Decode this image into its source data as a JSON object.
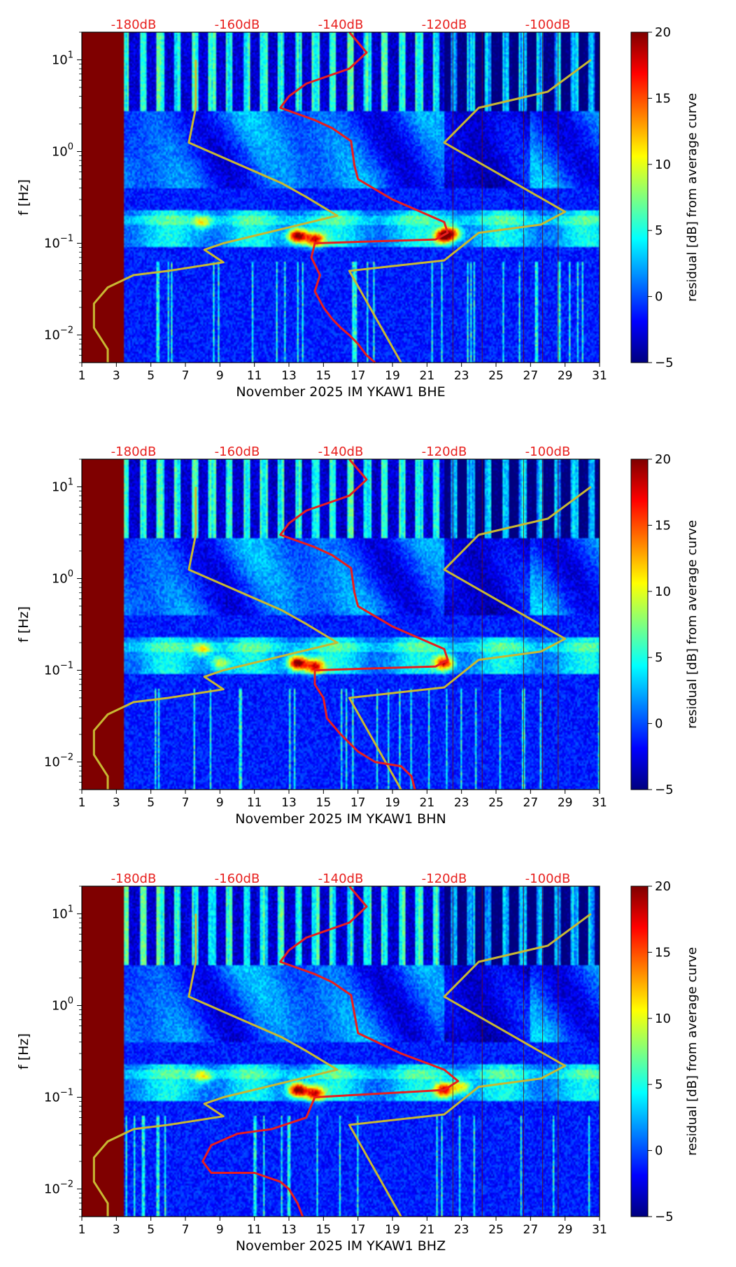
{
  "colors": {
    "db_label": "#e8201e",
    "yellow_curve": "#c8b832",
    "red_curve": "#e81e1e",
    "pre_data_fill": "#800000",
    "jet": [
      "#00007f",
      "#0000ff",
      "#007fff",
      "#00ffff",
      "#7fff7f",
      "#ffff00",
      "#ff7f00",
      "#ff0000",
      "#7f0000"
    ]
  },
  "chart_data": [
    {
      "type": "heatmap",
      "channel": "BHE",
      "xlabel": "November 2025 IM YKAW1  BHE",
      "ylabel": "f [Hz]",
      "x_ticks": [
        "1",
        "3",
        "5",
        "7",
        "9",
        "11",
        "13",
        "15",
        "17",
        "19",
        "21",
        "23",
        "25",
        "27",
        "29",
        "31"
      ],
      "xlim": [
        1,
        31
      ],
      "y_ticks": [
        "10^-2",
        "10^-1",
        "10^0",
        "10^1"
      ],
      "ylim_hz": [
        0.005,
        20
      ],
      "top_db_ticks": [
        "-180dB",
        "-160dB",
        "-140dB",
        "-120dB",
        "-100dB"
      ],
      "top_db_day_positions": [
        4,
        10,
        16,
        22,
        28
      ],
      "data_start_day": 3.4,
      "colorbar": {
        "label": "residual [dB] from average curve",
        "ticks": [
          "20",
          "15",
          "10",
          "5",
          "0",
          "−5"
        ],
        "range": [
          -5,
          20
        ]
      },
      "yellow_curve": [
        [
          2.5,
          0.005
        ],
        [
          2.5,
          0.007
        ],
        [
          1.7,
          0.012
        ],
        [
          1.7,
          0.022
        ],
        [
          2.5,
          0.033
        ],
        [
          4,
          0.045
        ],
        [
          6,
          0.05
        ],
        [
          9.2,
          0.062
        ],
        [
          8.1,
          0.085
        ],
        [
          9.2,
          0.1
        ],
        [
          15.8,
          0.2
        ],
        [
          14,
          0.32
        ],
        [
          12.6,
          0.45
        ],
        [
          7.2,
          1.25
        ],
        [
          7.6,
          3
        ],
        [
          7.6,
          10
        ],
        [
          19.5,
          0.005
        ],
        [
          16.5,
          0.05
        ],
        [
          22,
          0.065
        ],
        [
          24,
          0.13
        ],
        [
          27.6,
          0.16
        ],
        [
          29,
          0.22
        ],
        [
          22,
          1.25
        ],
        [
          24,
          3
        ],
        [
          28,
          4.5
        ],
        [
          30.5,
          10
        ]
      ],
      "red_curve": [
        [
          18,
          0.005
        ],
        [
          17.5,
          0.006
        ],
        [
          17,
          0.008
        ],
        [
          16.5,
          0.01
        ],
        [
          16,
          0.012
        ],
        [
          15.5,
          0.015
        ],
        [
          15,
          0.02
        ],
        [
          14.5,
          0.03
        ],
        [
          14.8,
          0.045
        ],
        [
          14.3,
          0.07
        ],
        [
          14.5,
          0.1
        ],
        [
          21.5,
          0.11
        ],
        [
          22.2,
          0.13
        ],
        [
          22,
          0.17
        ],
        [
          19,
          0.3
        ],
        [
          17,
          0.5
        ],
        [
          16.8,
          0.7
        ],
        [
          16.6,
          1.3
        ],
        [
          15.5,
          1.8
        ],
        [
          14.5,
          2.2
        ],
        [
          12.5,
          3
        ],
        [
          13,
          4
        ],
        [
          14,
          5.5
        ],
        [
          16.5,
          8
        ],
        [
          17.5,
          12
        ],
        [
          16.5,
          20
        ]
      ],
      "hotspots": [
        [
          13.5,
          0.12,
          20
        ],
        [
          14.5,
          0.11,
          15
        ],
        [
          22,
          0.12,
          18
        ],
        [
          8,
          0.17,
          8
        ],
        [
          22.5,
          0.13,
          10
        ]
      ]
    },
    {
      "type": "heatmap",
      "channel": "BHN",
      "xlabel": "November 2025 IM YKAW1  BHN",
      "ylabel": "f [Hz]",
      "x_ticks": [
        "1",
        "3",
        "5",
        "7",
        "9",
        "11",
        "13",
        "15",
        "17",
        "19",
        "21",
        "23",
        "25",
        "27",
        "29",
        "31"
      ],
      "xlim": [
        1,
        31
      ],
      "y_ticks": [
        "10^-2",
        "10^-1",
        "10^0",
        "10^1"
      ],
      "ylim_hz": [
        0.005,
        20
      ],
      "top_db_ticks": [
        "-180dB",
        "-160dB",
        "-140dB",
        "-120dB",
        "-100dB"
      ],
      "top_db_day_positions": [
        4,
        10,
        16,
        22,
        28
      ],
      "data_start_day": 3.4,
      "colorbar": {
        "label": "residual [dB] from average curve",
        "ticks": [
          "20",
          "15",
          "10",
          "5",
          "0",
          "−5"
        ],
        "range": [
          -5,
          20
        ]
      },
      "yellow_curve": [
        [
          2.5,
          0.005
        ],
        [
          2.5,
          0.007
        ],
        [
          1.7,
          0.012
        ],
        [
          1.7,
          0.022
        ],
        [
          2.5,
          0.033
        ],
        [
          4,
          0.045
        ],
        [
          6,
          0.05
        ],
        [
          9.2,
          0.062
        ],
        [
          8.1,
          0.085
        ],
        [
          9.2,
          0.1
        ],
        [
          15.8,
          0.2
        ],
        [
          14,
          0.32
        ],
        [
          12.6,
          0.45
        ],
        [
          7.2,
          1.25
        ],
        [
          7.6,
          3
        ],
        [
          7.6,
          10
        ],
        [
          19.5,
          0.005
        ],
        [
          16.5,
          0.05
        ],
        [
          22,
          0.065
        ],
        [
          24,
          0.13
        ],
        [
          27.6,
          0.16
        ],
        [
          29,
          0.22
        ],
        [
          22,
          1.25
        ],
        [
          24,
          3
        ],
        [
          28,
          4.5
        ],
        [
          30.5,
          10
        ]
      ],
      "red_curve": [
        [
          20.3,
          0.005
        ],
        [
          20.1,
          0.007
        ],
        [
          19.5,
          0.009
        ],
        [
          18,
          0.01
        ],
        [
          17,
          0.013
        ],
        [
          16,
          0.02
        ],
        [
          15.2,
          0.03
        ],
        [
          15,
          0.05
        ],
        [
          14.5,
          0.07
        ],
        [
          14.5,
          0.1
        ],
        [
          21.5,
          0.11
        ],
        [
          22.2,
          0.13
        ],
        [
          22,
          0.17
        ],
        [
          19,
          0.3
        ],
        [
          17,
          0.5
        ],
        [
          16.8,
          0.7
        ],
        [
          16.6,
          1.3
        ],
        [
          15.5,
          1.8
        ],
        [
          14.5,
          2.2
        ],
        [
          12.5,
          3
        ],
        [
          13,
          4
        ],
        [
          14,
          5.5
        ],
        [
          16.5,
          8
        ],
        [
          17.5,
          12
        ],
        [
          16.5,
          20
        ]
      ],
      "hotspots": [
        [
          13.5,
          0.12,
          20
        ],
        [
          14.5,
          0.11,
          15
        ],
        [
          22,
          0.12,
          16
        ],
        [
          8,
          0.17,
          8
        ],
        [
          9,
          0.12,
          8
        ]
      ]
    },
    {
      "type": "heatmap",
      "channel": "BHZ",
      "xlabel": "November 2025 IM YKAW1  BHZ",
      "ylabel": "f [Hz]",
      "x_ticks": [
        "1",
        "3",
        "5",
        "7",
        "9",
        "11",
        "13",
        "15",
        "17",
        "19",
        "21",
        "23",
        "25",
        "27",
        "29",
        "31"
      ],
      "xlim": [
        1,
        31
      ],
      "y_ticks": [
        "10^-2",
        "10^-1",
        "10^0",
        "10^1"
      ],
      "ylim_hz": [
        0.005,
        20
      ],
      "top_db_ticks": [
        "-180dB",
        "-160dB",
        "-140dB",
        "-120dB",
        "-100dB"
      ],
      "top_db_day_positions": [
        4,
        10,
        16,
        22,
        28
      ],
      "data_start_day": 3.4,
      "colorbar": {
        "label": "residual [dB] from average curve",
        "ticks": [
          "20",
          "15",
          "10",
          "5",
          "0",
          "−5"
        ],
        "range": [
          -5,
          20
        ]
      },
      "yellow_curve": [
        [
          2.5,
          0.005
        ],
        [
          2.5,
          0.007
        ],
        [
          1.7,
          0.012
        ],
        [
          1.7,
          0.022
        ],
        [
          2.5,
          0.033
        ],
        [
          4,
          0.045
        ],
        [
          6,
          0.05
        ],
        [
          9.2,
          0.062
        ],
        [
          8.1,
          0.085
        ],
        [
          9.2,
          0.1
        ],
        [
          15.8,
          0.2
        ],
        [
          14,
          0.32
        ],
        [
          12.6,
          0.45
        ],
        [
          7.2,
          1.25
        ],
        [
          7.6,
          3
        ],
        [
          7.6,
          10
        ],
        [
          19.5,
          0.005
        ],
        [
          16.5,
          0.05
        ],
        [
          22,
          0.065
        ],
        [
          24,
          0.13
        ],
        [
          27.6,
          0.16
        ],
        [
          29,
          0.22
        ],
        [
          22,
          1.25
        ],
        [
          24,
          3
        ],
        [
          28,
          4.5
        ],
        [
          30.5,
          10
        ]
      ],
      "red_curve": [
        [
          13.8,
          0.005
        ],
        [
          13.5,
          0.007
        ],
        [
          13,
          0.01
        ],
        [
          12.5,
          0.012
        ],
        [
          11,
          0.015
        ],
        [
          8.5,
          0.015
        ],
        [
          8,
          0.02
        ],
        [
          8.5,
          0.03
        ],
        [
          10,
          0.04
        ],
        [
          12,
          0.045
        ],
        [
          14,
          0.06
        ],
        [
          14.5,
          0.1
        ],
        [
          22,
          0.12
        ],
        [
          22.8,
          0.15
        ],
        [
          22,
          0.2
        ],
        [
          19.5,
          0.3
        ],
        [
          17,
          0.5
        ],
        [
          16.6,
          1.3
        ],
        [
          15.5,
          1.8
        ],
        [
          14.5,
          2.2
        ],
        [
          12.5,
          3
        ],
        [
          13,
          4
        ],
        [
          14,
          5.5
        ],
        [
          16.5,
          8
        ],
        [
          17.5,
          12
        ],
        [
          16.5,
          20
        ]
      ],
      "hotspots": [
        [
          13.5,
          0.12,
          20
        ],
        [
          14.5,
          0.11,
          15
        ],
        [
          22,
          0.12,
          16
        ],
        [
          23,
          0.13,
          10
        ],
        [
          8,
          0.17,
          8
        ]
      ]
    }
  ]
}
